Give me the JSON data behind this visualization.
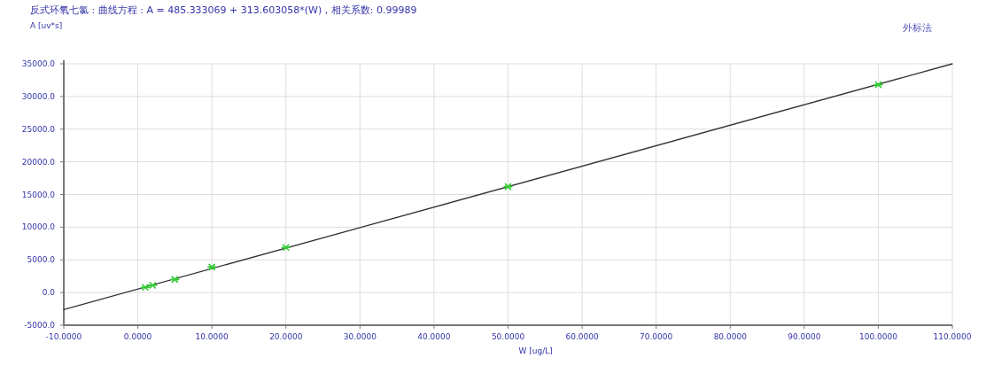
{
  "chart_data": {
    "type": "scatter",
    "title": "反式环氧七氯 :    曲线方程 : A = 485.333069 + 313.603058*(W) , 相关系数:  0.99989",
    "ylabel": "A [uv*s]",
    "xlabel": "W [ug/L]",
    "annotations": [
      "外标法"
    ],
    "series": [
      {
        "type": "line",
        "color": "#333333",
        "x": [
          -10,
          110
        ],
        "values": [
          -2600,
          35000
        ],
        "line_style": "solid"
      },
      {
        "type": "scatter",
        "color": "#33cc33",
        "x": [
          1,
          2,
          5,
          10,
          20,
          50,
          100
        ],
        "values": [
          800,
          1100,
          2000,
          3900,
          6900,
          16200,
          31800
        ],
        "marker": "cross"
      }
    ],
    "xlim": [
      -10,
      110
    ],
    "ylim": [
      -5000,
      35000
    ],
    "xticks": [
      {
        "value": -10,
        "label": "-10.0000"
      },
      {
        "value": 0,
        "label": "0.0000"
      },
      {
        "value": 10,
        "label": "10.0000"
      },
      {
        "value": 20,
        "label": "20.0000"
      },
      {
        "value": 30,
        "label": "30.0000"
      },
      {
        "value": 40,
        "label": "40.0000"
      },
      {
        "value": 50,
        "label": "50.0000"
      },
      {
        "value": 60,
        "label": "60.0000"
      },
      {
        "value": 70,
        "label": "70.0000"
      },
      {
        "value": 80,
        "label": "80.0000"
      },
      {
        "value": 90,
        "label": "90.0000"
      },
      {
        "value": 100,
        "label": "100.0000"
      },
      {
        "value": 110,
        "label": "110.0000"
      }
    ],
    "yticks": [
      {
        "value": -5000,
        "label": "-5000.0"
      },
      {
        "value": 0,
        "label": "0.0"
      },
      {
        "value": 5000,
        "label": "5000.0"
      },
      {
        "value": 10000,
        "label": "10000.0"
      },
      {
        "value": 15000,
        "label": "15000.0"
      },
      {
        "value": 20000,
        "label": "20000.0"
      },
      {
        "value": 25000,
        "label": "25000.0"
      },
      {
        "value": 30000,
        "label": "30000.0"
      },
      {
        "value": 35000,
        "label": "35000.0"
      }
    ],
    "grid": true
  }
}
